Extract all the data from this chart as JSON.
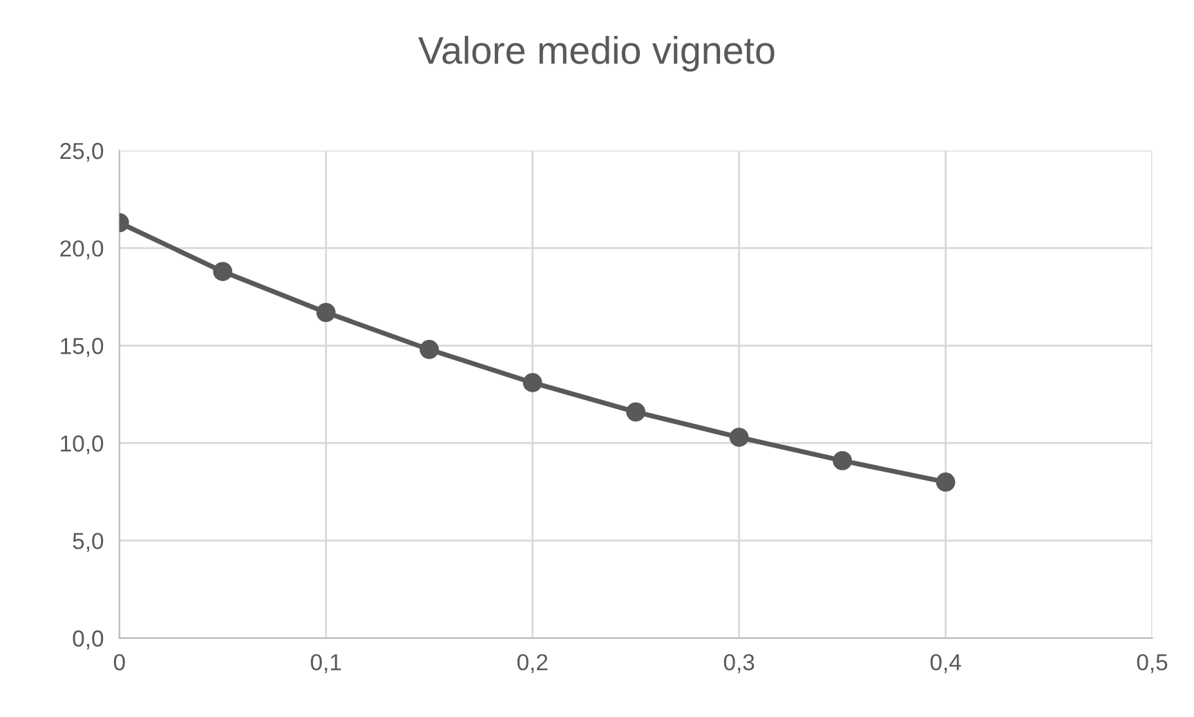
{
  "chart_data": {
    "type": "line",
    "title": "Valore medio vigneto",
    "x": [
      0,
      0.05,
      0.1,
      0.15,
      0.2,
      0.25,
      0.3,
      0.35,
      0.4
    ],
    "series": [
      {
        "color": "#595959",
        "values": [
          21.3,
          18.8,
          16.7,
          14.8,
          13.1,
          11.6,
          10.3,
          9.1,
          8.0
        ]
      }
    ],
    "xlim": [
      0,
      0.5
    ],
    "xticks": [
      0,
      {
        "value": 0.1,
        "label": "0,1"
      },
      {
        "value": 0.2,
        "label": "0,2"
      },
      {
        "value": 0.3,
        "label": "0,3"
      },
      {
        "value": 0.4,
        "label": "0,4"
      },
      {
        "value": 0.5,
        "label": "0,5"
      }
    ],
    "ylim": [
      0,
      25
    ],
    "yticks": [
      {
        "value": 0,
        "label": "0,0"
      },
      {
        "value": 5,
        "label": "5,0"
      },
      {
        "value": 10,
        "label": "10,0"
      },
      {
        "value": 15,
        "label": "15,0"
      },
      {
        "value": 20,
        "label": "20,0"
      },
      {
        "value": 25,
        "label": "25,0"
      }
    ],
    "grid": true,
    "marker": "circle",
    "line_style": "solid"
  }
}
